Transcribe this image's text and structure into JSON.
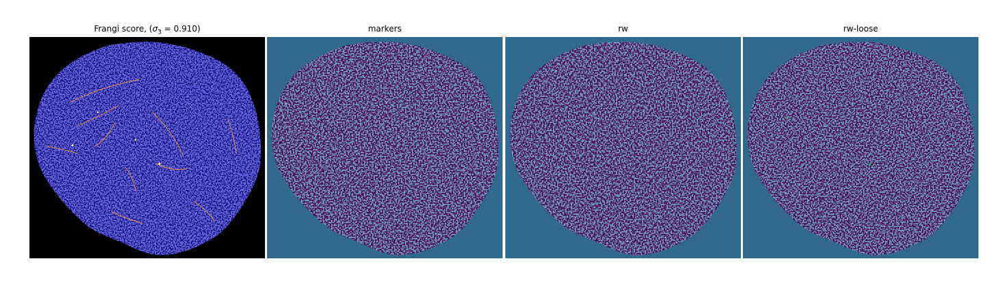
{
  "panels": [
    {
      "id": "frangi",
      "title_prefix": "Frangi score, (",
      "title_sigma": "σ",
      "title_sub": "3",
      "title_suffix": " = 0.910)",
      "colors": {
        "background": "#000000",
        "region": "#0a0a6e",
        "texture": "#2626c8",
        "highlight": "#ff9a3c",
        "bright": "#ffe9a0"
      }
    },
    {
      "id": "markers",
      "title": "markers",
      "colors": {
        "background": "#31688e",
        "region": "#440154",
        "texture": "#31688e"
      }
    },
    {
      "id": "rw",
      "title": "rw",
      "colors": {
        "background": "#31688e",
        "region": "#440154",
        "texture": "#31688e"
      }
    },
    {
      "id": "rw-loose",
      "title": "rw-loose",
      "colors": {
        "background": "#31688e",
        "region": "#440154",
        "texture": "#31688e",
        "highlight": "#35b779"
      }
    }
  ]
}
